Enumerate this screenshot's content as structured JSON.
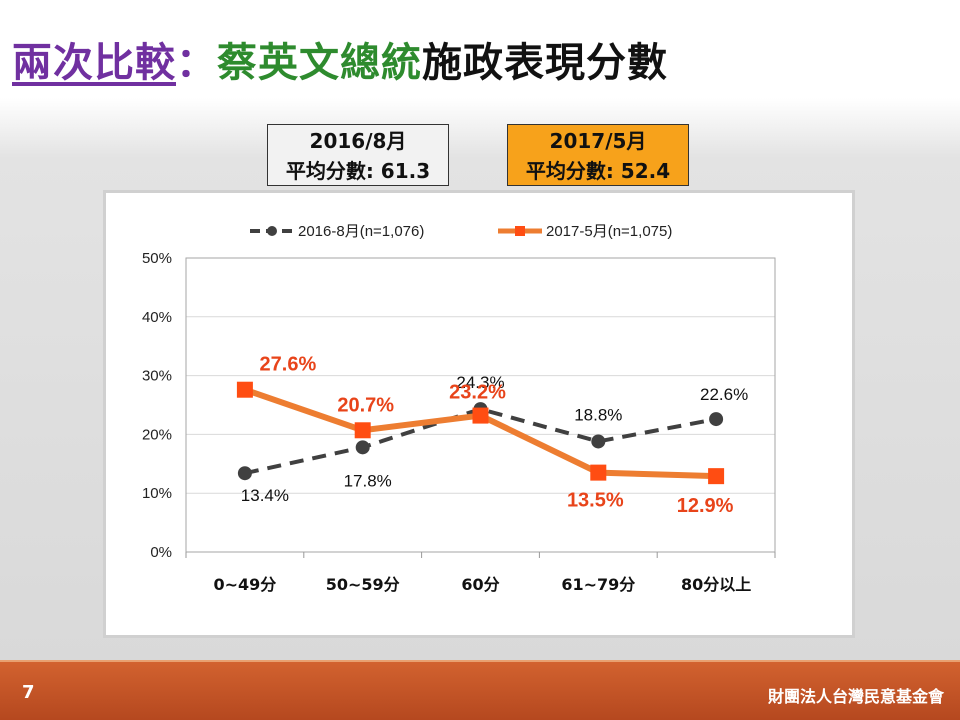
{
  "slide": {
    "title_part1": "兩次比較",
    "title_sep": "：",
    "title_part2": "蔡英文總統",
    "title_part3": "施政表現分數",
    "page_number": "7",
    "organization": "財團法人台灣民意基金會"
  },
  "boxes": {
    "left_line1": "2016/8月",
    "left_line2_label": "平均分數: ",
    "left_line2_value": "61.3",
    "right_line1": "2017/5月",
    "right_line2_label": "平均分數: ",
    "right_line2_value": "52.4"
  },
  "colors": {
    "series1": "#404040",
    "series2": "#ed7d31",
    "label2": "#e8441a",
    "grid": "#d9d9d9"
  },
  "chart_data": {
    "type": "line",
    "categories": [
      "0~49分",
      "50~59分",
      "60分",
      "61~79分",
      "80分以上"
    ],
    "y_ticks": [
      "0%",
      "10%",
      "20%",
      "30%",
      "40%",
      "50%"
    ],
    "ylim": [
      0,
      50
    ],
    "legend_position": "top",
    "series": [
      {
        "name": "2016-8月(n=1,076)",
        "values": [
          13.4,
          17.8,
          24.3,
          18.8,
          22.6
        ],
        "labels": [
          "13.4%",
          "17.8%",
          "24.3%",
          "18.8%",
          "22.6%"
        ],
        "style": "dashed"
      },
      {
        "name": "2017-5月(n=1,075)",
        "values": [
          27.6,
          20.7,
          23.2,
          13.5,
          12.9
        ],
        "labels": [
          "27.6%",
          "20.7%",
          "23.2%",
          "13.5%",
          "12.9%"
        ],
        "style": "solid"
      }
    ]
  }
}
